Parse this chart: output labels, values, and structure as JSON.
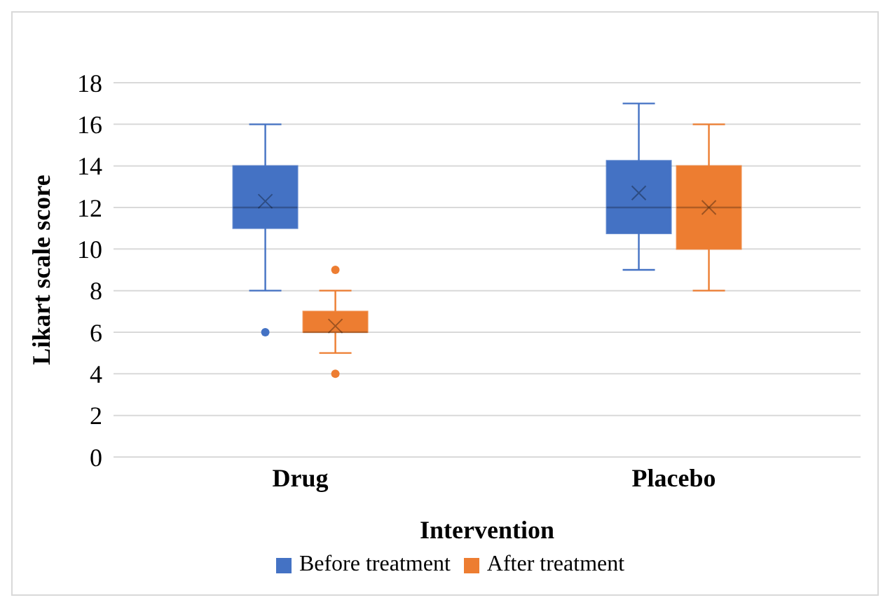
{
  "chart_data": {
    "type": "box",
    "xlabel": "Intervention",
    "ylabel": "Likart scale score",
    "categories": [
      "Drug",
      "Placebo"
    ],
    "series": [
      {
        "name": "Before treatment",
        "color": "#4472c4",
        "boxes": [
          {
            "low": 8,
            "q1": 11,
            "median": 12,
            "q3": 14,
            "high": 16,
            "mean": 12.3,
            "outliers": [
              6
            ]
          },
          {
            "low": 9,
            "q1": 10.75,
            "median": 12,
            "q3": 14.25,
            "high": 17,
            "mean": 12.7
          }
        ]
      },
      {
        "name": "After treatment",
        "color": "#ed7d31",
        "boxes": [
          {
            "low": 5,
            "q1": 6,
            "median": 6,
            "q3": 7,
            "high": 8,
            "mean": 6.3,
            "outliers": [
              9,
              4
            ]
          },
          {
            "low": 8,
            "q1": 10,
            "median": 12,
            "q3": 14,
            "high": 16,
            "mean": 12
          }
        ]
      }
    ],
    "ylim": [
      0,
      18
    ],
    "yticks": [
      0,
      2,
      4,
      6,
      8,
      10,
      12,
      14,
      16,
      18
    ],
    "grid": "y",
    "legend": "bottom",
    "marker": "cross"
  }
}
